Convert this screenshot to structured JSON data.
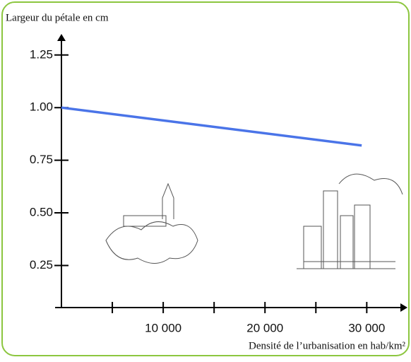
{
  "chart_data": {
    "type": "line",
    "title": "Largeur du pétale en cm",
    "x_label": "Densité de l’urbanisation en hab/km²",
    "x": [
      0,
      29500
    ],
    "series": [
      {
        "name": null,
        "color": "#4a74e8",
        "values": [
          1.0,
          0.82
        ]
      }
    ],
    "xlim": [
      0,
      34000
    ],
    "xticks": [
      {
        "value": 10000,
        "label": "10 000"
      },
      {
        "value": 20000,
        "label": "20 000"
      },
      {
        "value": 30000,
        "label": "30 000"
      }
    ],
    "x_minor_ticks": [
      5000,
      15000,
      25000
    ],
    "ylim": [
      0.05,
      1.35
    ],
    "yticks": [
      0.25,
      {
        "value": 0.5,
        "label": "0.50"
      },
      0.75,
      {
        "value": 1.0,
        "label": "1.00"
      },
      1.25
    ],
    "grid": false
  }
}
